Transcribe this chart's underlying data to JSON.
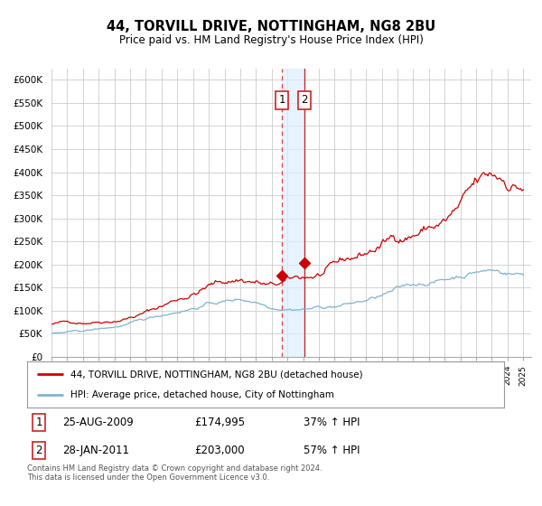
{
  "title": "44, TORVILL DRIVE, NOTTINGHAM, NG8 2BU",
  "subtitle": "Price paid vs. HM Land Registry's House Price Index (HPI)",
  "ylabel_ticks": [
    "£0",
    "£50K",
    "£100K",
    "£150K",
    "£200K",
    "£250K",
    "£300K",
    "£350K",
    "£400K",
    "£450K",
    "£500K",
    "£550K",
    "£600K"
  ],
  "ytick_values": [
    0,
    50000,
    100000,
    150000,
    200000,
    250000,
    300000,
    350000,
    400000,
    450000,
    500000,
    550000,
    600000
  ],
  "ylim": [
    0,
    625000
  ],
  "xlim_left": 1995.0,
  "xlim_right": 2025.5,
  "background_color": "#ffffff",
  "grid_color": "#cccccc",
  "red_line_color": "#cc0000",
  "blue_line_color": "#7fb3d3",
  "annotation_box_fill": "#ddeeff",
  "annotation_vline1_color": "#dd4444",
  "annotation_vline2_color": "#cc2222",
  "legend_label_red": "44, TORVILL DRIVE, NOTTINGHAM, NG8 2BU (detached house)",
  "legend_label_blue": "HPI: Average price, detached house, City of Nottingham",
  "transaction1_date": "25-AUG-2009",
  "transaction1_price": "£174,995",
  "transaction1_hpi": "37% ↑ HPI",
  "transaction2_date": "28-JAN-2011",
  "transaction2_price": "£203,000",
  "transaction2_hpi": "57% ↑ HPI",
  "footer": "Contains HM Land Registry data © Crown copyright and database right 2024.\nThis data is licensed under the Open Government Licence v3.0.",
  "transaction1_x": 2009.646,
  "transaction1_y": 174995,
  "transaction2_x": 2011.08,
  "transaction2_y": 203000,
  "vline1_x": 2009.646,
  "vline2_x": 2011.08
}
